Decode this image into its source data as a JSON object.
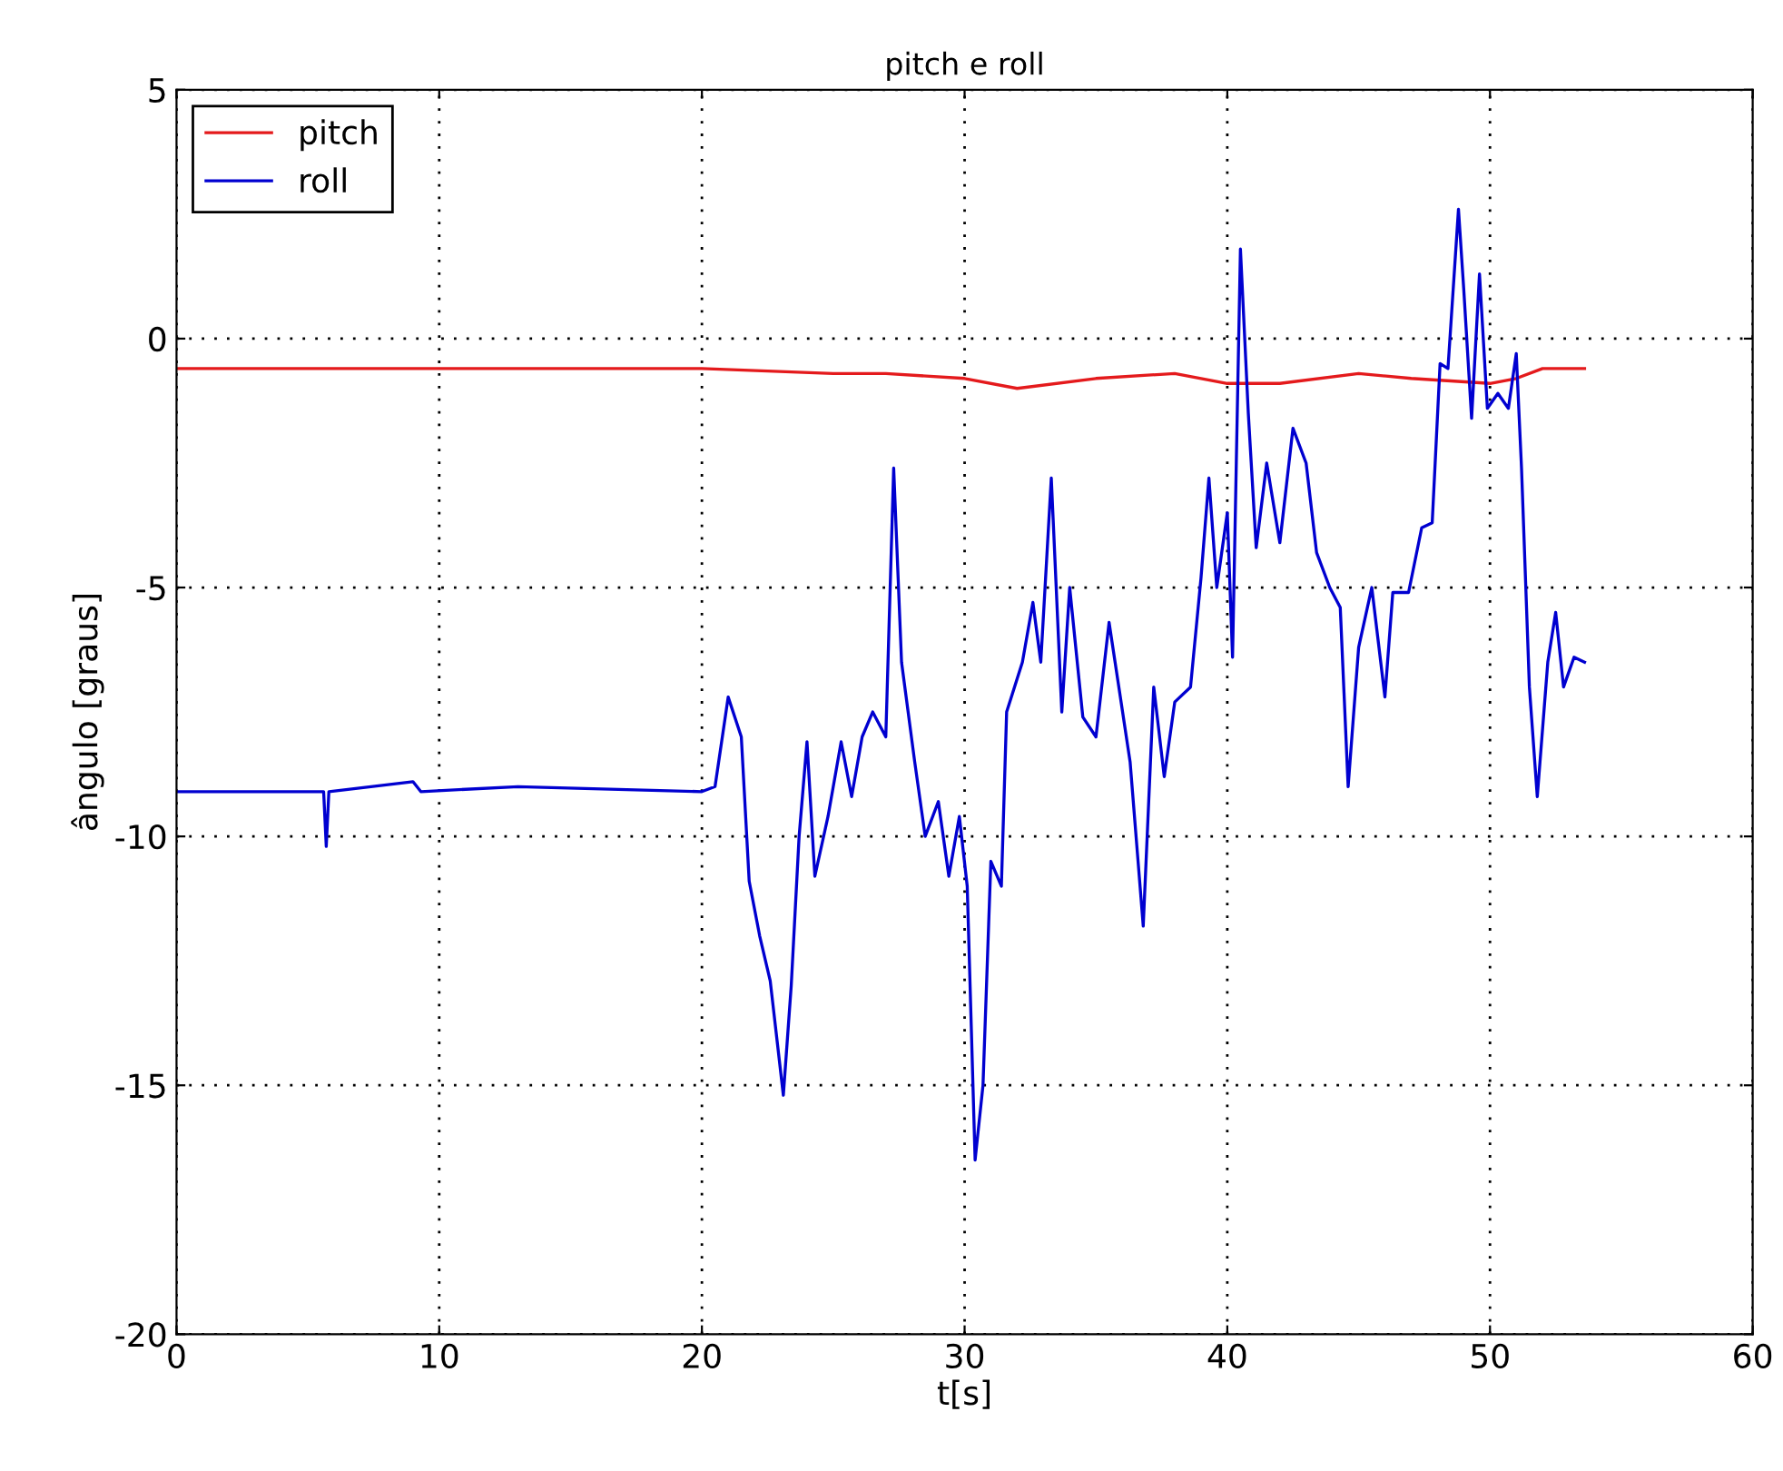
{
  "chart_data": {
    "type": "line",
    "title": "pitch e roll",
    "xlabel": "t[s]",
    "ylabel": "ângulo [graus]",
    "xlim": [
      0,
      60
    ],
    "ylim": [
      -20,
      5
    ],
    "xticks": [
      0,
      10,
      20,
      30,
      40,
      50,
      60
    ],
    "yticks": [
      -20,
      -15,
      -10,
      -5,
      0,
      5
    ],
    "grid": true,
    "legend": "top left",
    "line_style": "solid",
    "series": [
      {
        "name": "pitch",
        "color": "#e41a1c",
        "x": [
          0,
          20,
          25,
          27,
          30,
          32,
          35,
          38,
          40,
          42,
          45,
          47,
          50,
          51,
          52,
          53.6
        ],
        "values": [
          -0.6,
          -0.6,
          -0.7,
          -0.7,
          -0.8,
          -1.0,
          -0.8,
          -0.7,
          -0.9,
          -0.9,
          -0.7,
          -0.8,
          -0.9,
          -0.8,
          -0.6,
          -0.6
        ]
      },
      {
        "name": "roll",
        "color": "#0000d0",
        "x": [
          0,
          5.6,
          5.7,
          5.8,
          9,
          9.3,
          13,
          20,
          20.5,
          21,
          21.5,
          21.8,
          22.2,
          22.6,
          23.1,
          23.4,
          23.7,
          24.0,
          24.3,
          24.8,
          25.3,
          25.7,
          26.1,
          26.5,
          27.0,
          27.3,
          27.6,
          28.1,
          28.5,
          29.0,
          29.4,
          29.8,
          30.1,
          30.4,
          30.7,
          31.0,
          31.4,
          31.6,
          32.2,
          32.6,
          32.9,
          33.3,
          33.7,
          34.0,
          34.5,
          35.0,
          35.5,
          36.3,
          36.8,
          37.2,
          37.6,
          38.0,
          38.6,
          39.0,
          39.3,
          39.6,
          40.0,
          40.2,
          40.5,
          40.8,
          41.1,
          41.5,
          42.0,
          42.5,
          43.0,
          43.4,
          43.9,
          44.3,
          44.6,
          45.0,
          45.5,
          46.0,
          46.3,
          46.9,
          47.4,
          47.8,
          48.1,
          48.4,
          48.8,
          49.0,
          49.3,
          49.6,
          49.9,
          50.3,
          50.7,
          51.0,
          51.2,
          51.5,
          51.8,
          52.2,
          52.5,
          52.8,
          53.2,
          53.6
        ],
        "values": [
          -9.1,
          -9.1,
          -10.2,
          -9.1,
          -8.9,
          -9.1,
          -9.0,
          -9.1,
          -9.0,
          -7.2,
          -8.0,
          -10.9,
          -12.0,
          -12.9,
          -15.2,
          -13.0,
          -10.0,
          -8.1,
          -10.8,
          -9.6,
          -8.1,
          -9.2,
          -8.0,
          -7.5,
          -8.0,
          -2.6,
          -6.5,
          -8.5,
          -10.0,
          -9.3,
          -10.8,
          -9.6,
          -11.0,
          -16.5,
          -15.0,
          -10.5,
          -11.0,
          -7.5,
          -6.5,
          -5.3,
          -6.5,
          -2.8,
          -7.5,
          -5.0,
          -7.6,
          -8.0,
          -5.7,
          -8.5,
          -11.8,
          -7.0,
          -8.8,
          -7.3,
          -7.0,
          -4.8,
          -2.8,
          -5.0,
          -3.5,
          -6.4,
          1.8,
          -1.5,
          -4.2,
          -2.5,
          -4.1,
          -1.8,
          -2.5,
          -4.3,
          -5.0,
          -5.4,
          -9.0,
          -6.2,
          -5.0,
          -7.2,
          -5.1,
          -5.1,
          -3.8,
          -3.7,
          -0.5,
          -0.6,
          2.6,
          1.0,
          -1.6,
          1.3,
          -1.4,
          -1.1,
          -1.4,
          -0.3,
          -2.6,
          -7.0,
          -9.2,
          -6.5,
          -5.5,
          -7.0,
          -6.4,
          -6.5
        ]
      }
    ]
  }
}
